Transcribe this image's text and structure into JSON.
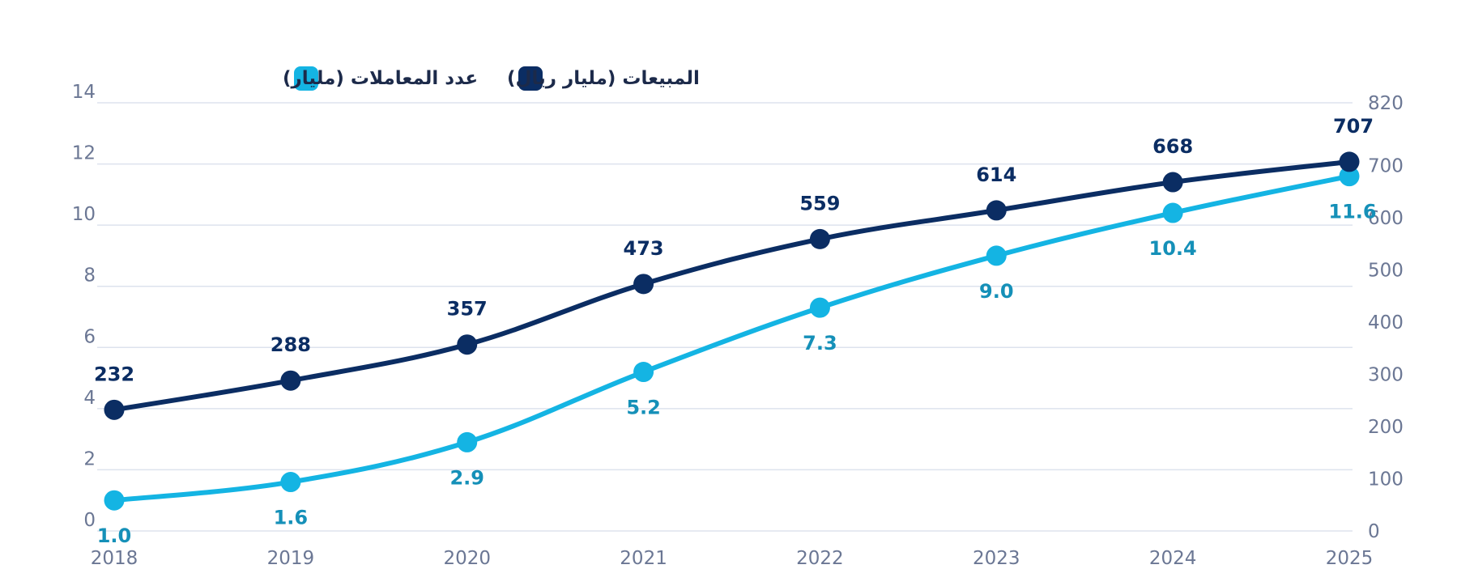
{
  "chart_data": {
    "type": "line",
    "categories": [
      "2018",
      "2019",
      "2020",
      "2021",
      "2022",
      "2023",
      "2024",
      "2025"
    ],
    "series": [
      {
        "name": "المبيعات (مليار ريال)",
        "axis": "right",
        "color": "#0b2d63",
        "values": [
          232,
          288,
          357,
          473,
          559,
          614,
          668,
          707
        ],
        "labels": [
          "232",
          "288",
          "357",
          "473",
          "559",
          "614",
          "668",
          "707"
        ],
        "label_position": "above"
      },
      {
        "name": "عدد المعاملات (مليار)",
        "axis": "left",
        "color": "#14b4e3",
        "label_color": "#1590b8",
        "values": [
          1.0,
          1.6,
          2.9,
          5.2,
          7.3,
          9.0,
          10.4,
          11.6
        ],
        "labels": [
          "1.0",
          "1.6",
          "2.9",
          "5.2",
          "7.3",
          "9.0",
          "10.4",
          "11.6"
        ],
        "label_position": "below"
      }
    ],
    "y_left": {
      "ylim": [
        0,
        14
      ],
      "ticks": [
        "0",
        "2",
        "4",
        "6",
        "8",
        "10",
        "12",
        "14"
      ]
    },
    "y_right": {
      "ylim": [
        0,
        820
      ],
      "ticks": [
        "0",
        "100",
        "200",
        "300",
        "400",
        "500",
        "600",
        "700",
        "820"
      ]
    },
    "grid": true,
    "legend_position": "top"
  }
}
